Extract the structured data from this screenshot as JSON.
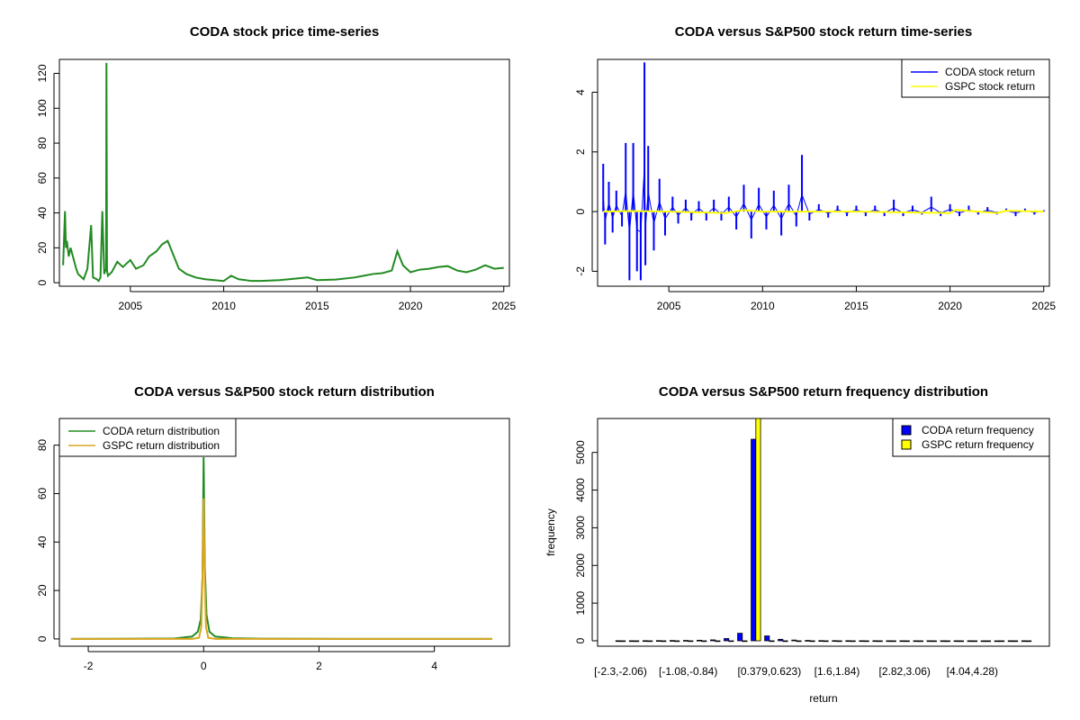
{
  "chart_data": [
    {
      "id": "price",
      "type": "line",
      "title": "CODA stock price time-series",
      "xlabel": "",
      "ylabel": "",
      "xlim": [
        2001.2,
        2025.3
      ],
      "ylim": [
        -2,
        128
      ],
      "x_ticks": [
        2005,
        2010,
        2015,
        2020,
        2025
      ],
      "y_ticks": [
        0,
        20,
        40,
        60,
        80,
        100,
        120
      ],
      "color": "#228B22",
      "series": [
        {
          "name": "CODA stock price",
          "x": [
            2001.4,
            2001.5,
            2001.55,
            2001.6,
            2001.7,
            2001.8,
            2002.0,
            2002.1,
            2002.2,
            2002.3,
            2002.4,
            2002.5,
            2002.7,
            2002.9,
            2003.0,
            2003.2,
            2003.3,
            2003.4,
            2003.5,
            2003.6,
            2003.7,
            2003.72,
            2003.75,
            2003.8,
            2004.0,
            2004.3,
            2004.6,
            2005.0,
            2005.3,
            2005.7,
            2006.0,
            2006.4,
            2006.7,
            2007.0,
            2007.3,
            2007.6,
            2008.0,
            2008.5,
            2009.0,
            2009.5,
            2010.0,
            2010.4,
            2010.8,
            2011.5,
            2012.0,
            2013.0,
            2014.0,
            2014.5,
            2015.0,
            2016.0,
            2017.0,
            2017.5,
            2018.0,
            2018.5,
            2019.0,
            2019.3,
            2019.6,
            2020.0,
            2020.5,
            2021.0,
            2021.5,
            2022.0,
            2022.5,
            2023.0,
            2023.5,
            2024.0,
            2024.5,
            2025.0
          ],
          "values": [
            10,
            41,
            20,
            24,
            15,
            20,
            12,
            8,
            5,
            4,
            3,
            2,
            8,
            33,
            3,
            2,
            1,
            3,
            41,
            5,
            8,
            126,
            7,
            4,
            6,
            12,
            9,
            13,
            8,
            10,
            15,
            18,
            22,
            24,
            16,
            8,
            5,
            3,
            2,
            1.5,
            1,
            4,
            2,
            1,
            1,
            1.5,
            2.5,
            3,
            1.5,
            1.8,
            3,
            4,
            5,
            5.5,
            7,
            18,
            10,
            6,
            7.5,
            8,
            9,
            9.5,
            7,
            6,
            7.5,
            10,
            8,
            8.5
          ]
        }
      ]
    },
    {
      "id": "returns",
      "type": "line",
      "title": "CODA versus S&P500 stock return time-series",
      "xlabel": "",
      "ylabel": "",
      "xlim": [
        2001.2,
        2025.3
      ],
      "ylim": [
        -2.5,
        5.1
      ],
      "x_ticks": [
        2005,
        2010,
        2015,
        2020,
        2025
      ],
      "y_ticks": [
        -2,
        0,
        2,
        4
      ],
      "legend": {
        "position": "top-right",
        "entries": [
          "CODA stock return",
          "GSPC stock return"
        ]
      },
      "series": [
        {
          "name": "CODA stock return",
          "color": "#0000FF",
          "x": [
            2001.5,
            2001.6,
            2001.8,
            2002.0,
            2002.2,
            2002.5,
            2002.7,
            2002.9,
            2003.1,
            2003.3,
            2003.5,
            2003.7,
            2003.75,
            2003.9,
            2004.2,
            2004.5,
            2004.8,
            2005.2,
            2005.5,
            2005.9,
            2006.2,
            2006.6,
            2007.0,
            2007.4,
            2007.8,
            2008.2,
            2008.6,
            2009.0,
            2009.4,
            2009.8,
            2010.2,
            2010.6,
            2011.0,
            2011.4,
            2011.8,
            2012.1,
            2012.5,
            2013.0,
            2013.5,
            2014.0,
            2014.5,
            2015.0,
            2015.5,
            2016.0,
            2016.5,
            2017.0,
            2017.5,
            2018.0,
            2018.5,
            2019.0,
            2019.5,
            2020.0,
            2020.5,
            2021.0,
            2021.5,
            2022.0,
            2022.5,
            2023.0,
            2023.5,
            2024.0,
            2024.5,
            2025.0
          ],
          "values": [
            1.6,
            -1.1,
            1.0,
            -0.7,
            0.7,
            -0.5,
            2.3,
            -2.3,
            2.3,
            -2.0,
            -2.3,
            5.0,
            -1.8,
            2.2,
            -1.3,
            1.1,
            -0.8,
            0.5,
            -0.4,
            0.4,
            -0.3,
            0.35,
            -0.3,
            0.4,
            -0.3,
            0.5,
            -0.6,
            0.9,
            -0.9,
            0.8,
            -0.6,
            0.7,
            -0.8,
            0.9,
            -0.5,
            1.9,
            -0.3,
            0.25,
            -0.2,
            0.2,
            -0.15,
            0.2,
            -0.15,
            0.2,
            -0.15,
            0.4,
            -0.15,
            0.2,
            -0.1,
            0.5,
            -0.15,
            0.25,
            -0.15,
            0.2,
            -0.1,
            0.15,
            -0.1,
            0.1,
            -0.15,
            0.1,
            -0.1,
            0.05
          ]
        },
        {
          "name": "GSPC stock return",
          "color": "#FFFF00",
          "x": [
            2001.5,
            2003.0,
            2005.0,
            2008.0,
            2009.0,
            2010.0,
            2015.0,
            2020.0,
            2020.3,
            2022.5,
            2023.0,
            2025.0
          ],
          "values": [
            0.0,
            0.02,
            0.0,
            -0.05,
            0.05,
            0.0,
            0.0,
            -0.05,
            0.06,
            -0.05,
            0.03,
            0.0
          ]
        }
      ]
    },
    {
      "id": "density",
      "type": "line",
      "title": "CODA versus S&P500 stock return distribution",
      "xlabel": "",
      "ylabel": "",
      "xlim": [
        -2.5,
        5.3
      ],
      "ylim": [
        -3,
        91
      ],
      "x_ticks": [
        -2,
        0,
        2,
        4
      ],
      "y_ticks": [
        0,
        20,
        40,
        60,
        80
      ],
      "legend": {
        "position": "top-left",
        "entries": [
          "CODA return distribution",
          "GSPC return distribution"
        ]
      },
      "series": [
        {
          "name": "CODA return distribution",
          "color": "#228B22",
          "x": [
            -2.3,
            -0.5,
            -0.2,
            -0.1,
            -0.05,
            -0.02,
            0.0,
            0.02,
            0.05,
            0.1,
            0.2,
            0.5,
            1.0,
            2.0,
            3.0,
            4.0,
            5.0
          ],
          "values": [
            0,
            0.2,
            1,
            3,
            8,
            25,
            75,
            30,
            10,
            3,
            1,
            0.3,
            0.1,
            0.05,
            0.02,
            0.01,
            0
          ]
        },
        {
          "name": "GSPC return distribution",
          "color": "#DAA520",
          "x": [
            -2.3,
            -0.2,
            -0.08,
            -0.04,
            -0.02,
            0.0,
            0.02,
            0.04,
            0.08,
            0.2,
            5.0
          ],
          "values": [
            0,
            0,
            0.5,
            5,
            25,
            58,
            25,
            5,
            0.5,
            0,
            0
          ]
        }
      ]
    },
    {
      "id": "histogram",
      "type": "bar",
      "title": "CODA versus S&P500 return frequency distribution",
      "xlabel": "return",
      "ylabel": "frequency",
      "ylim": [
        0,
        5900
      ],
      "y_ticks": [
        0,
        1000,
        2000,
        3000,
        4000,
        5000
      ],
      "tick_labels": [
        "[-2.3,-2.06)",
        "[-1.08,-0.84)",
        "[0.379,0.623)",
        "[1.6,1.84)",
        "[2.82,3.06)",
        "[4.04,4.28)"
      ],
      "tick_label_positions": [
        0,
        5,
        11,
        16,
        21,
        26
      ],
      "legend": {
        "position": "top-right",
        "entries": [
          "CODA return frequency",
          "GSPC return frequency"
        ]
      },
      "series": [
        {
          "name": "CODA return frequency",
          "color": "#0000FF",
          "values": [
            2,
            1,
            3,
            5,
            8,
            10,
            15,
            25,
            60,
            200,
            5350,
            130,
            40,
            20,
            10,
            5,
            4,
            3,
            2,
            2,
            1,
            1,
            1,
            1,
            1,
            1,
            1,
            0,
            0,
            1,
            1
          ]
        },
        {
          "name": "GSPC return frequency",
          "color": "#FFFF00",
          "values": [
            0,
            0,
            0,
            0,
            0,
            0,
            0,
            0,
            0,
            0,
            6000,
            0,
            0,
            0,
            0,
            0,
            0,
            0,
            0,
            0,
            0,
            0,
            0,
            0,
            0,
            0,
            0,
            0,
            0,
            0,
            0
          ]
        }
      ]
    }
  ]
}
